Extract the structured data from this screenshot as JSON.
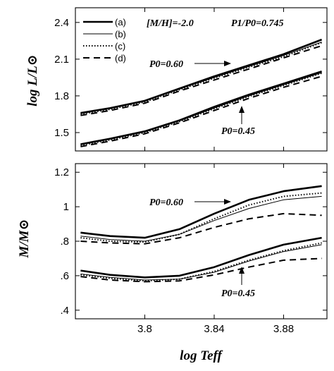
{
  "chart_data": [
    {
      "type": "line",
      "panel": "top",
      "xlabel": "",
      "ylabel": "log L/L⊙",
      "xlim": [
        3.76,
        3.905
      ],
      "ylim": [
        1.35,
        2.52
      ],
      "x_ticks": [
        3.8,
        3.84,
        3.88
      ],
      "y_ticks": [
        1.5,
        1.8,
        2.1,
        2.4
      ],
      "y_tick_labels": [
        "1.5",
        "1.8",
        "2.1",
        "2.4"
      ],
      "legend": {
        "placement": "top-left",
        "entries": [
          "(a)",
          "(b)",
          "(c)",
          "(d)"
        ]
      },
      "annotations": {
        "metallicity": "[M/H]=-2.0",
        "period_ratio": "P1/P0=0.745",
        "p0_high": "P0=0.60",
        "p0_low": "P0=0.45"
      },
      "x": [
        3.763,
        3.78,
        3.8,
        3.82,
        3.84,
        3.86,
        3.88,
        3.902
      ],
      "groups": [
        {
          "label": "P0=0.60",
          "series": [
            {
              "name": "(a)",
              "style": "thick-solid",
              "values": [
                1.66,
                1.7,
                1.76,
                1.86,
                1.96,
                2.05,
                2.14,
                2.26
              ]
            },
            {
              "name": "(b)",
              "style": "thin-solid",
              "values": [
                1.655,
                1.695,
                1.755,
                1.855,
                1.95,
                2.04,
                2.13,
                2.24
              ]
            },
            {
              "name": "(c)",
              "style": "dotted",
              "values": [
                1.65,
                1.69,
                1.75,
                1.85,
                1.945,
                2.035,
                2.12,
                2.235
              ]
            },
            {
              "name": "(d)",
              "style": "dashed",
              "values": [
                1.64,
                1.68,
                1.74,
                1.84,
                1.93,
                2.02,
                2.11,
                2.21
              ]
            }
          ]
        },
        {
          "label": "P0=0.45",
          "series": [
            {
              "name": "(a)",
              "style": "thick-solid",
              "values": [
                1.405,
                1.45,
                1.51,
                1.6,
                1.71,
                1.81,
                1.9,
                2.0
              ]
            },
            {
              "name": "(b)",
              "style": "thin-solid",
              "values": [
                1.4,
                1.445,
                1.505,
                1.595,
                1.7,
                1.8,
                1.89,
                1.99
              ]
            },
            {
              "name": "(c)",
              "style": "dotted",
              "values": [
                1.395,
                1.44,
                1.5,
                1.59,
                1.695,
                1.795,
                1.885,
                1.985
              ]
            },
            {
              "name": "(d)",
              "style": "dashed",
              "values": [
                1.385,
                1.43,
                1.49,
                1.58,
                1.68,
                1.78,
                1.87,
                1.96
              ]
            }
          ]
        }
      ]
    },
    {
      "type": "line",
      "panel": "bottom",
      "xlabel": "log Teff",
      "ylabel": "M/M⊙",
      "xlim": [
        3.76,
        3.905
      ],
      "ylim": [
        0.35,
        1.25
      ],
      "x_ticks": [
        3.8,
        3.84,
        3.88
      ],
      "x_tick_labels": [
        "3.8",
        "3.84",
        "3.88"
      ],
      "y_ticks": [
        0.4,
        0.6,
        0.8,
        1.0,
        1.2
      ],
      "y_tick_labels": [
        ".4",
        ".6",
        ".8",
        "1",
        "1.2"
      ],
      "annotations": {
        "p0_high": "P0=0.60",
        "p0_low": "P0=0.45"
      },
      "x": [
        3.763,
        3.78,
        3.8,
        3.82,
        3.84,
        3.86,
        3.88,
        3.902
      ],
      "groups": [
        {
          "label": "P0=0.60",
          "series": [
            {
              "name": "(a)",
              "style": "thick-solid",
              "values": [
                0.85,
                0.83,
                0.82,
                0.87,
                0.96,
                1.04,
                1.09,
                1.12
              ]
            },
            {
              "name": "(b)",
              "style": "thin-solid",
              "values": [
                0.83,
                0.81,
                0.8,
                0.84,
                0.92,
                0.99,
                1.04,
                1.06
              ]
            },
            {
              "name": "(c)",
              "style": "dotted",
              "values": [
                0.82,
                0.8,
                0.795,
                0.84,
                0.93,
                1.01,
                1.06,
                1.08
              ]
            },
            {
              "name": "(d)",
              "style": "dashed",
              "values": [
                0.8,
                0.79,
                0.785,
                0.82,
                0.88,
                0.93,
                0.96,
                0.95
              ]
            }
          ]
        },
        {
          "label": "P0=0.45",
          "series": [
            {
              "name": "(a)",
              "style": "thick-solid",
              "values": [
                0.63,
                0.605,
                0.59,
                0.6,
                0.65,
                0.72,
                0.78,
                0.82
              ]
            },
            {
              "name": "(b)",
              "style": "thin-solid",
              "values": [
                0.61,
                0.59,
                0.575,
                0.58,
                0.62,
                0.685,
                0.74,
                0.78
              ]
            },
            {
              "name": "(c)",
              "style": "dotted",
              "values": [
                0.605,
                0.585,
                0.57,
                0.58,
                0.625,
                0.69,
                0.745,
                0.79
              ]
            },
            {
              "name": "(d)",
              "style": "dashed",
              "values": [
                0.595,
                0.575,
                0.565,
                0.57,
                0.605,
                0.65,
                0.69,
                0.7
              ]
            }
          ]
        }
      ]
    }
  ]
}
